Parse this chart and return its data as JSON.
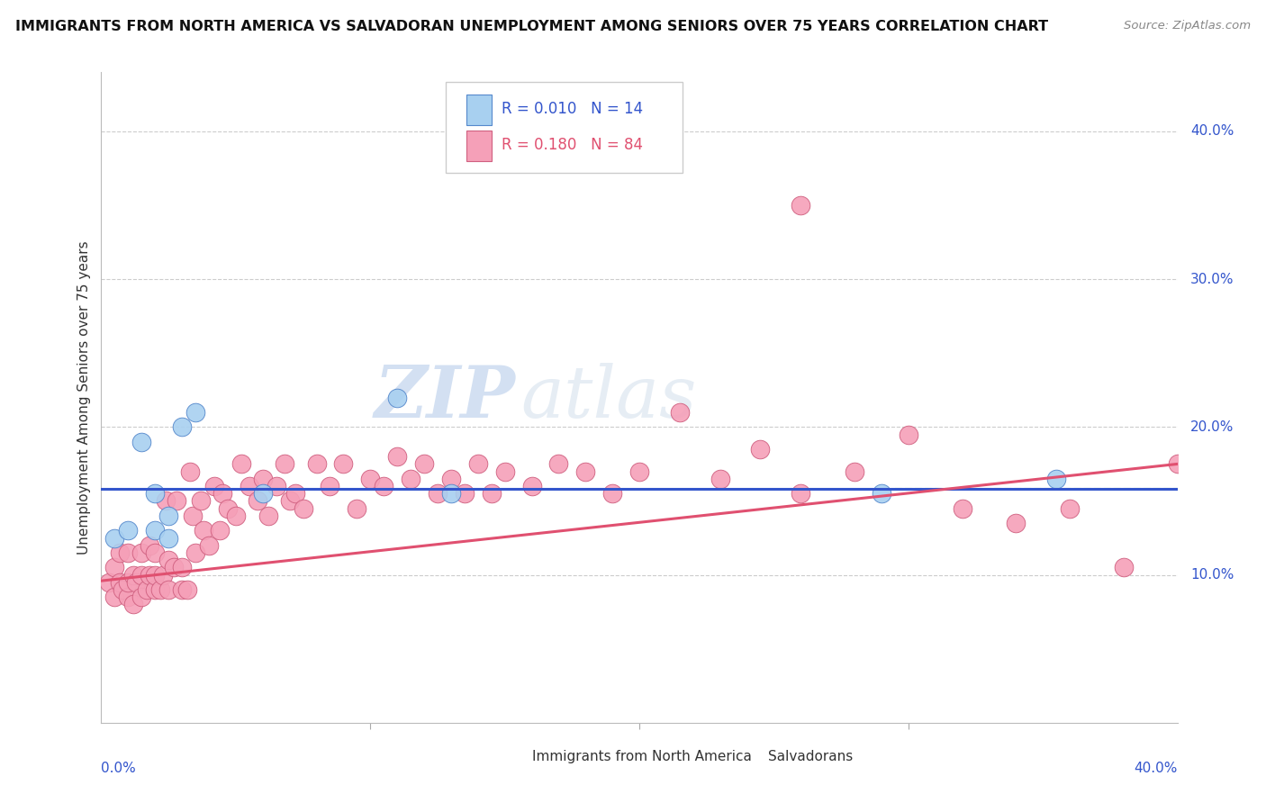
{
  "title": "IMMIGRANTS FROM NORTH AMERICA VS SALVADORAN UNEMPLOYMENT AMONG SENIORS OVER 75 YEARS CORRELATION CHART",
  "source": "Source: ZipAtlas.com",
  "ylabel": "Unemployment Among Seniors over 75 years",
  "color_blue": "#a8d0f0",
  "color_pink": "#f5a0b8",
  "color_blue_line": "#3355cc",
  "color_pink_line": "#e05070",
  "color_dashed": "#88cc88",
  "watermark_zip": "ZIP",
  "watermark_atlas": "atlas",
  "legend_label_blue": "Immigrants from North America",
  "legend_label_pink": "Salvadorans",
  "xlim": [
    0.0,
    0.4
  ],
  "ylim": [
    0.0,
    0.44
  ],
  "ytick_vals": [
    0.1,
    0.2,
    0.3,
    0.4
  ],
  "ytick_labels": [
    "10.0%",
    "20.0%",
    "30.0%",
    "40.0%"
  ],
  "blue_x": [
    0.005,
    0.01,
    0.015,
    0.02,
    0.02,
    0.025,
    0.025,
    0.03,
    0.035,
    0.06,
    0.11,
    0.13,
    0.29,
    0.355
  ],
  "blue_y": [
    0.125,
    0.13,
    0.19,
    0.13,
    0.155,
    0.125,
    0.14,
    0.2,
    0.21,
    0.155,
    0.22,
    0.155,
    0.155,
    0.165
  ],
  "pink_x": [
    0.003,
    0.005,
    0.005,
    0.007,
    0.007,
    0.008,
    0.01,
    0.01,
    0.01,
    0.012,
    0.012,
    0.013,
    0.015,
    0.015,
    0.015,
    0.017,
    0.018,
    0.018,
    0.02,
    0.02,
    0.02,
    0.022,
    0.023,
    0.024,
    0.025,
    0.025,
    0.027,
    0.028,
    0.03,
    0.03,
    0.032,
    0.033,
    0.034,
    0.035,
    0.037,
    0.038,
    0.04,
    0.042,
    0.044,
    0.045,
    0.047,
    0.05,
    0.052,
    0.055,
    0.058,
    0.06,
    0.062,
    0.065,
    0.068,
    0.07,
    0.072,
    0.075,
    0.08,
    0.085,
    0.09,
    0.095,
    0.1,
    0.105,
    0.11,
    0.115,
    0.12,
    0.125,
    0.13,
    0.135,
    0.14,
    0.145,
    0.15,
    0.16,
    0.17,
    0.18,
    0.19,
    0.2,
    0.215,
    0.23,
    0.245,
    0.26,
    0.28,
    0.3,
    0.32,
    0.34,
    0.36,
    0.38,
    0.4,
    0.26
  ],
  "pink_y": [
    0.095,
    0.085,
    0.105,
    0.095,
    0.115,
    0.09,
    0.085,
    0.095,
    0.115,
    0.1,
    0.08,
    0.095,
    0.085,
    0.1,
    0.115,
    0.09,
    0.1,
    0.12,
    0.09,
    0.1,
    0.115,
    0.09,
    0.1,
    0.15,
    0.09,
    0.11,
    0.105,
    0.15,
    0.09,
    0.105,
    0.09,
    0.17,
    0.14,
    0.115,
    0.15,
    0.13,
    0.12,
    0.16,
    0.13,
    0.155,
    0.145,
    0.14,
    0.175,
    0.16,
    0.15,
    0.165,
    0.14,
    0.16,
    0.175,
    0.15,
    0.155,
    0.145,
    0.175,
    0.16,
    0.175,
    0.145,
    0.165,
    0.16,
    0.18,
    0.165,
    0.175,
    0.155,
    0.165,
    0.155,
    0.175,
    0.155,
    0.17,
    0.16,
    0.175,
    0.17,
    0.155,
    0.17,
    0.21,
    0.165,
    0.185,
    0.155,
    0.17,
    0.195,
    0.145,
    0.135,
    0.145,
    0.105,
    0.175,
    0.35
  ],
  "blue_trend_x": [
    0.0,
    0.4
  ],
  "blue_trend_y": [
    0.158,
    0.158
  ],
  "pink_trend_x": [
    0.0,
    0.4
  ],
  "pink_trend_y": [
    0.096,
    0.175
  ],
  "dashed_trend_x": [
    0.295,
    0.4
  ],
  "dashed_trend_y": [
    0.158,
    0.158
  ]
}
